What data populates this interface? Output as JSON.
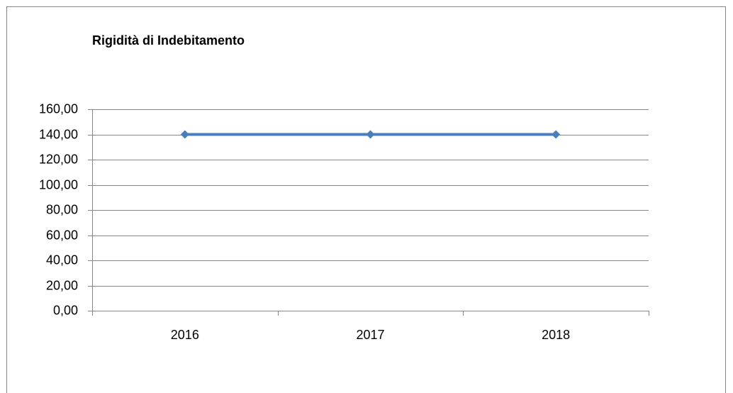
{
  "chart_data": {
    "type": "line",
    "title": "Rigidità di Indebitamento",
    "categories": [
      "2016",
      "2017",
      "2018"
    ],
    "series": [
      {
        "name": null,
        "color": "#4a7ebb",
        "values": [
          140,
          140,
          140
        ]
      }
    ],
    "ylim": [
      0,
      160
    ],
    "yticks": [
      {
        "value": 0,
        "label": "0,00"
      },
      {
        "value": 20,
        "label": "20,00"
      },
      {
        "value": 40,
        "label": "40,00"
      },
      {
        "value": 60,
        "label": "60,00"
      },
      {
        "value": 80,
        "label": "80,00"
      },
      {
        "value": 100,
        "label": "100,00"
      },
      {
        "value": 120,
        "label": "120,00"
      },
      {
        "value": 140,
        "label": "140,00"
      },
      {
        "value": 160,
        "label": "160,00"
      }
    ],
    "grid": true
  }
}
